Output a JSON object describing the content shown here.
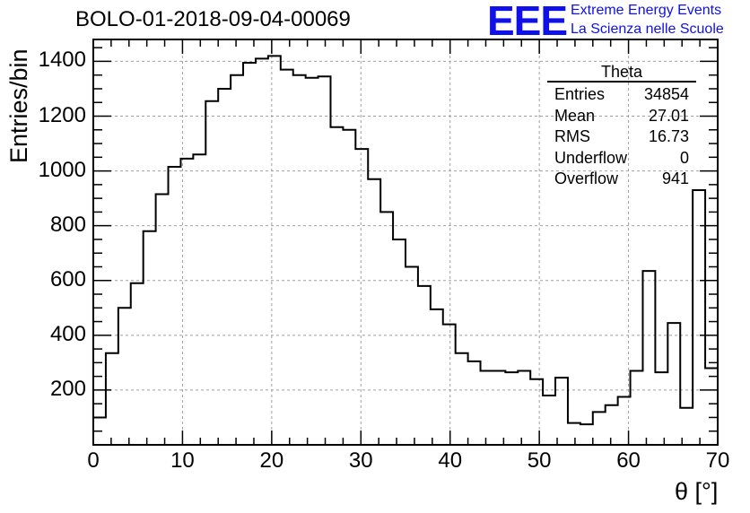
{
  "header": {
    "title": "BOLO-01-2018-09-04-00069",
    "logo_text": "EEE",
    "logo_line1": "Extreme Energy Events",
    "logo_line2": "La Scienza nelle Scuole"
  },
  "stats": {
    "title": "Theta",
    "rows": [
      {
        "label": "Entries",
        "value": "34854"
      },
      {
        "label": "Mean",
        "value": "27.01"
      },
      {
        "label": "RMS",
        "value": "16.73"
      },
      {
        "label": "Underflow",
        "value": "0"
      },
      {
        "label": "Overflow",
        "value": "941"
      }
    ]
  },
  "chart_data": {
    "type": "bar",
    "style": "step-histogram",
    "title": "BOLO-01-2018-09-04-00069",
    "xlabel": "θ [°]",
    "ylabel": "Entries/bin",
    "xlim": [
      0,
      70
    ],
    "ylim": [
      0,
      1480
    ],
    "x_ticks": [
      0,
      10,
      20,
      30,
      40,
      50,
      60,
      70
    ],
    "y_ticks": [
      200,
      400,
      600,
      800,
      1000,
      1200,
      1400
    ],
    "grid": true,
    "bin_width": 1.4,
    "bin_edges_start": 0,
    "values": [
      100,
      335,
      500,
      590,
      780,
      915,
      1015,
      1045,
      1060,
      1255,
      1300,
      1350,
      1395,
      1410,
      1420,
      1370,
      1350,
      1340,
      1345,
      1160,
      1150,
      1080,
      970,
      850,
      750,
      650,
      580,
      495,
      440,
      335,
      305,
      270,
      270,
      265,
      270,
      240,
      180,
      245,
      80,
      75,
      120,
      145,
      175,
      270,
      635,
      265,
      445,
      135,
      930,
      280
    ],
    "colors": {
      "line": "#000000",
      "grid": "#a0a0a0",
      "accent": "#1010e8"
    }
  }
}
